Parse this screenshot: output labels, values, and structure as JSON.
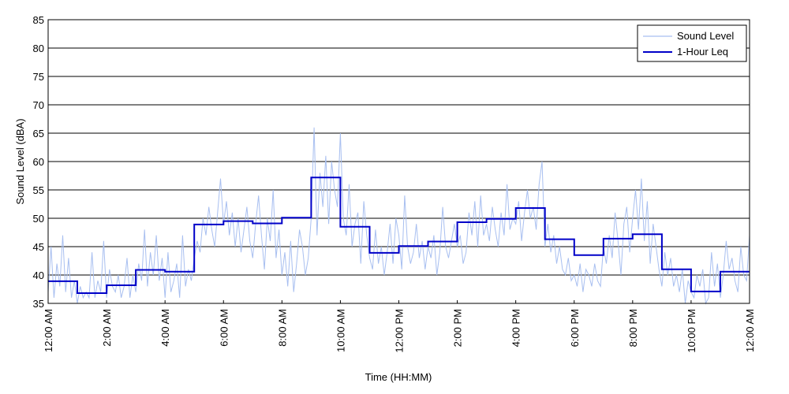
{
  "chart_data": {
    "type": "line",
    "xlabel": "Time (HH:MM)",
    "ylabel": "Sound Level (dBA)",
    "xlim": [
      0,
      24
    ],
    "ylim": [
      35,
      85
    ],
    "yticks": [
      35,
      40,
      45,
      50,
      55,
      60,
      65,
      70,
      75,
      80,
      85
    ],
    "xticks": [
      {
        "value": 0,
        "label": "12:00 AM"
      },
      {
        "value": 2,
        "label": "2:00 AM"
      },
      {
        "value": 4,
        "label": "4:00 AM"
      },
      {
        "value": 6,
        "label": "6:00 AM"
      },
      {
        "value": 8,
        "label": "8:00 AM"
      },
      {
        "value": 10,
        "label": "10:00 AM"
      },
      {
        "value": 12,
        "label": "12:00 PM"
      },
      {
        "value": 14,
        "label": "2:00 PM"
      },
      {
        "value": 16,
        "label": "4:00 PM"
      },
      {
        "value": 18,
        "label": "6:00 PM"
      },
      {
        "value": 20,
        "label": "8:00 PM"
      },
      {
        "value": 22,
        "label": "10:00 PM"
      },
      {
        "value": 24,
        "label": "12:00 AM"
      }
    ],
    "grid": "horizontal",
    "legend": "top-right",
    "series": [
      {
        "name": "Sound Level",
        "color": "#a8bff0",
        "x": [
          0,
          0.1,
          0.2,
          0.3,
          0.4,
          0.5,
          0.6,
          0.7,
          0.8,
          0.9,
          1,
          1.1,
          1.2,
          1.3,
          1.4,
          1.5,
          1.6,
          1.7,
          1.8,
          1.9,
          2,
          2.1,
          2.2,
          2.3,
          2.4,
          2.5,
          2.6,
          2.7,
          2.8,
          2.9,
          3,
          3.1,
          3.2,
          3.3,
          3.4,
          3.5,
          3.6,
          3.7,
          3.8,
          3.9,
          4,
          4.1,
          4.2,
          4.3,
          4.4,
          4.5,
          4.6,
          4.7,
          4.8,
          4.9,
          5,
          5.1,
          5.2,
          5.3,
          5.4,
          5.5,
          5.6,
          5.7,
          5.8,
          5.9,
          6,
          6.1,
          6.2,
          6.3,
          6.4,
          6.5,
          6.6,
          6.7,
          6.8,
          6.9,
          7,
          7.1,
          7.2,
          7.3,
          7.4,
          7.5,
          7.6,
          7.7,
          7.8,
          7.9,
          8,
          8.1,
          8.2,
          8.3,
          8.4,
          8.5,
          8.6,
          8.7,
          8.8,
          8.9,
          9,
          9.1,
          9.2,
          9.3,
          9.4,
          9.5,
          9.6,
          9.7,
          9.8,
          9.9,
          10,
          10.1,
          10.2,
          10.3,
          10.4,
          10.5,
          10.6,
          10.7,
          10.8,
          10.9,
          11,
          11.1,
          11.2,
          11.3,
          11.4,
          11.5,
          11.6,
          11.7,
          11.8,
          11.9,
          12,
          12.1,
          12.2,
          12.3,
          12.4,
          12.5,
          12.6,
          12.7,
          12.8,
          12.9,
          13,
          13.1,
          13.2,
          13.3,
          13.4,
          13.5,
          13.6,
          13.7,
          13.8,
          13.9,
          14,
          14.1,
          14.2,
          14.3,
          14.4,
          14.5,
          14.6,
          14.7,
          14.8,
          14.9,
          15,
          15.1,
          15.2,
          15.3,
          15.4,
          15.5,
          15.6,
          15.7,
          15.8,
          15.9,
          16,
          16.1,
          16.2,
          16.3,
          16.4,
          16.5,
          16.6,
          16.7,
          16.8,
          16.9,
          17,
          17.1,
          17.2,
          17.3,
          17.4,
          17.5,
          17.6,
          17.7,
          17.8,
          17.9,
          18,
          18.1,
          18.2,
          18.3,
          18.4,
          18.5,
          18.6,
          18.7,
          18.8,
          18.9,
          19,
          19.1,
          19.2,
          19.3,
          19.4,
          19.5,
          19.6,
          19.7,
          19.8,
          19.9,
          20,
          20.1,
          20.2,
          20.3,
          20.4,
          20.5,
          20.6,
          20.7,
          20.8,
          20.9,
          21,
          21.1,
          21.2,
          21.3,
          21.4,
          21.5,
          21.6,
          21.7,
          21.8,
          21.9,
          22,
          22.1,
          22.2,
          22.3,
          22.4,
          22.5,
          22.6,
          22.7,
          22.8,
          22.9,
          23,
          23.1,
          23.2,
          23.3,
          23.4,
          23.5,
          23.6,
          23.7,
          23.8,
          23.9,
          24
        ],
        "values": [
          37,
          45,
          36,
          42,
          38,
          47,
          37,
          43,
          36,
          39,
          35,
          38,
          36,
          37,
          36,
          44,
          36,
          39,
          37,
          46,
          36,
          41,
          38,
          37,
          40,
          36,
          38,
          43,
          36,
          40,
          37,
          42,
          39,
          48,
          38,
          44,
          40,
          47,
          39,
          43,
          36,
          44,
          37,
          39,
          42,
          36,
          47,
          38,
          41,
          39,
          43,
          46,
          44,
          50,
          47,
          52,
          48,
          45,
          51,
          57,
          49,
          53,
          47,
          51,
          45,
          50,
          44,
          48,
          52,
          46,
          43,
          49,
          54,
          47,
          41,
          50,
          46,
          55,
          43,
          48,
          40,
          44,
          38,
          46,
          37,
          42,
          48,
          45,
          40,
          43,
          50,
          66,
          47,
          58,
          52,
          61,
          49,
          60,
          55,
          52,
          65,
          50,
          47,
          56,
          45,
          49,
          51,
          42,
          53,
          47,
          43,
          41,
          48,
          42,
          45,
          40,
          44,
          49,
          42,
          50,
          47,
          41,
          54,
          45,
          42,
          44,
          49,
          43,
          46,
          41,
          45,
          43,
          47,
          40,
          44,
          52,
          45,
          43,
          46,
          49,
          45,
          47,
          42,
          44,
          51,
          47,
          53,
          45,
          54,
          47,
          49,
          46,
          52,
          48,
          45,
          51,
          47,
          56,
          48,
          50,
          49,
          53,
          46,
          51,
          55,
          50,
          52,
          48,
          56,
          60,
          45,
          49,
          44,
          47,
          42,
          45,
          41,
          40,
          43,
          39,
          40,
          38,
          42,
          37,
          41,
          40,
          38,
          42,
          39,
          38,
          45,
          42,
          47,
          43,
          51,
          46,
          40,
          49,
          52,
          44,
          50,
          55,
          48,
          57,
          46,
          53,
          42,
          49,
          45,
          41,
          38,
          44,
          40,
          43,
          38,
          40,
          37,
          41,
          35,
          39,
          37,
          36,
          40,
          38,
          41,
          35,
          36,
          44,
          38,
          42,
          36,
          40,
          46,
          41,
          43,
          39,
          37,
          45,
          40,
          39,
          47
        ]
      },
      {
        "name": "1-Hour Leq",
        "color": "#0000c8",
        "hourly": [
          38.9,
          36.8,
          38.2,
          40.9,
          40.6,
          48.9,
          49.5,
          49.1,
          50.1,
          57.2,
          48.5,
          43.9,
          45.1,
          45.9,
          49.3,
          49.9,
          51.8,
          46.3,
          43.5,
          46.4,
          47.2,
          41.0,
          37.1,
          40.6
        ]
      }
    ]
  }
}
